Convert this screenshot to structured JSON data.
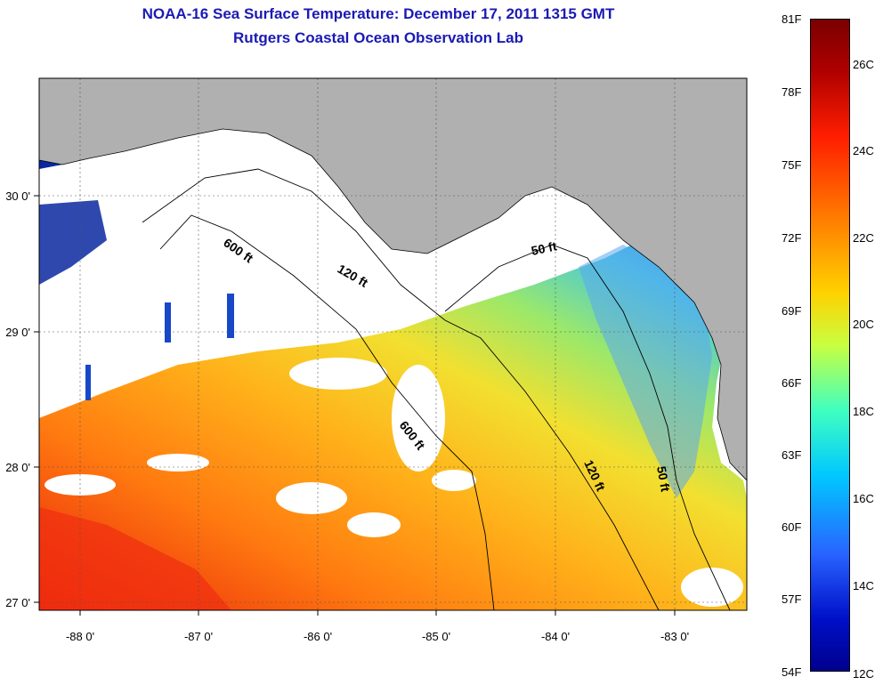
{
  "title": "NOAA-16 Sea Surface Temperature:  December 17, 2011 1315 GMT",
  "subtitle": "Rutgers Coastal Ocean Observation Lab",
  "map": {
    "lon_ticks": [
      "-88 0'",
      "-87 0'",
      "-86 0'",
      "-85 0'",
      "-84 0'",
      "-83 0'"
    ],
    "lat_ticks": [
      "30 0'",
      "29 0'",
      "28 0'",
      "27 0'"
    ],
    "contours": [
      "600 ft",
      "120 ft",
      "50 ft",
      "600 ft",
      "120 ft",
      "50 ft"
    ]
  },
  "colorbar": {
    "fahrenheit": [
      "81F",
      "78F",
      "75F",
      "72F",
      "69F",
      "66F",
      "63F",
      "60F",
      "57F",
      "54F"
    ],
    "celsius": [
      "26C",
      "24C",
      "22C",
      "20C",
      "18C",
      "16C",
      "14C",
      "12C"
    ]
  }
}
